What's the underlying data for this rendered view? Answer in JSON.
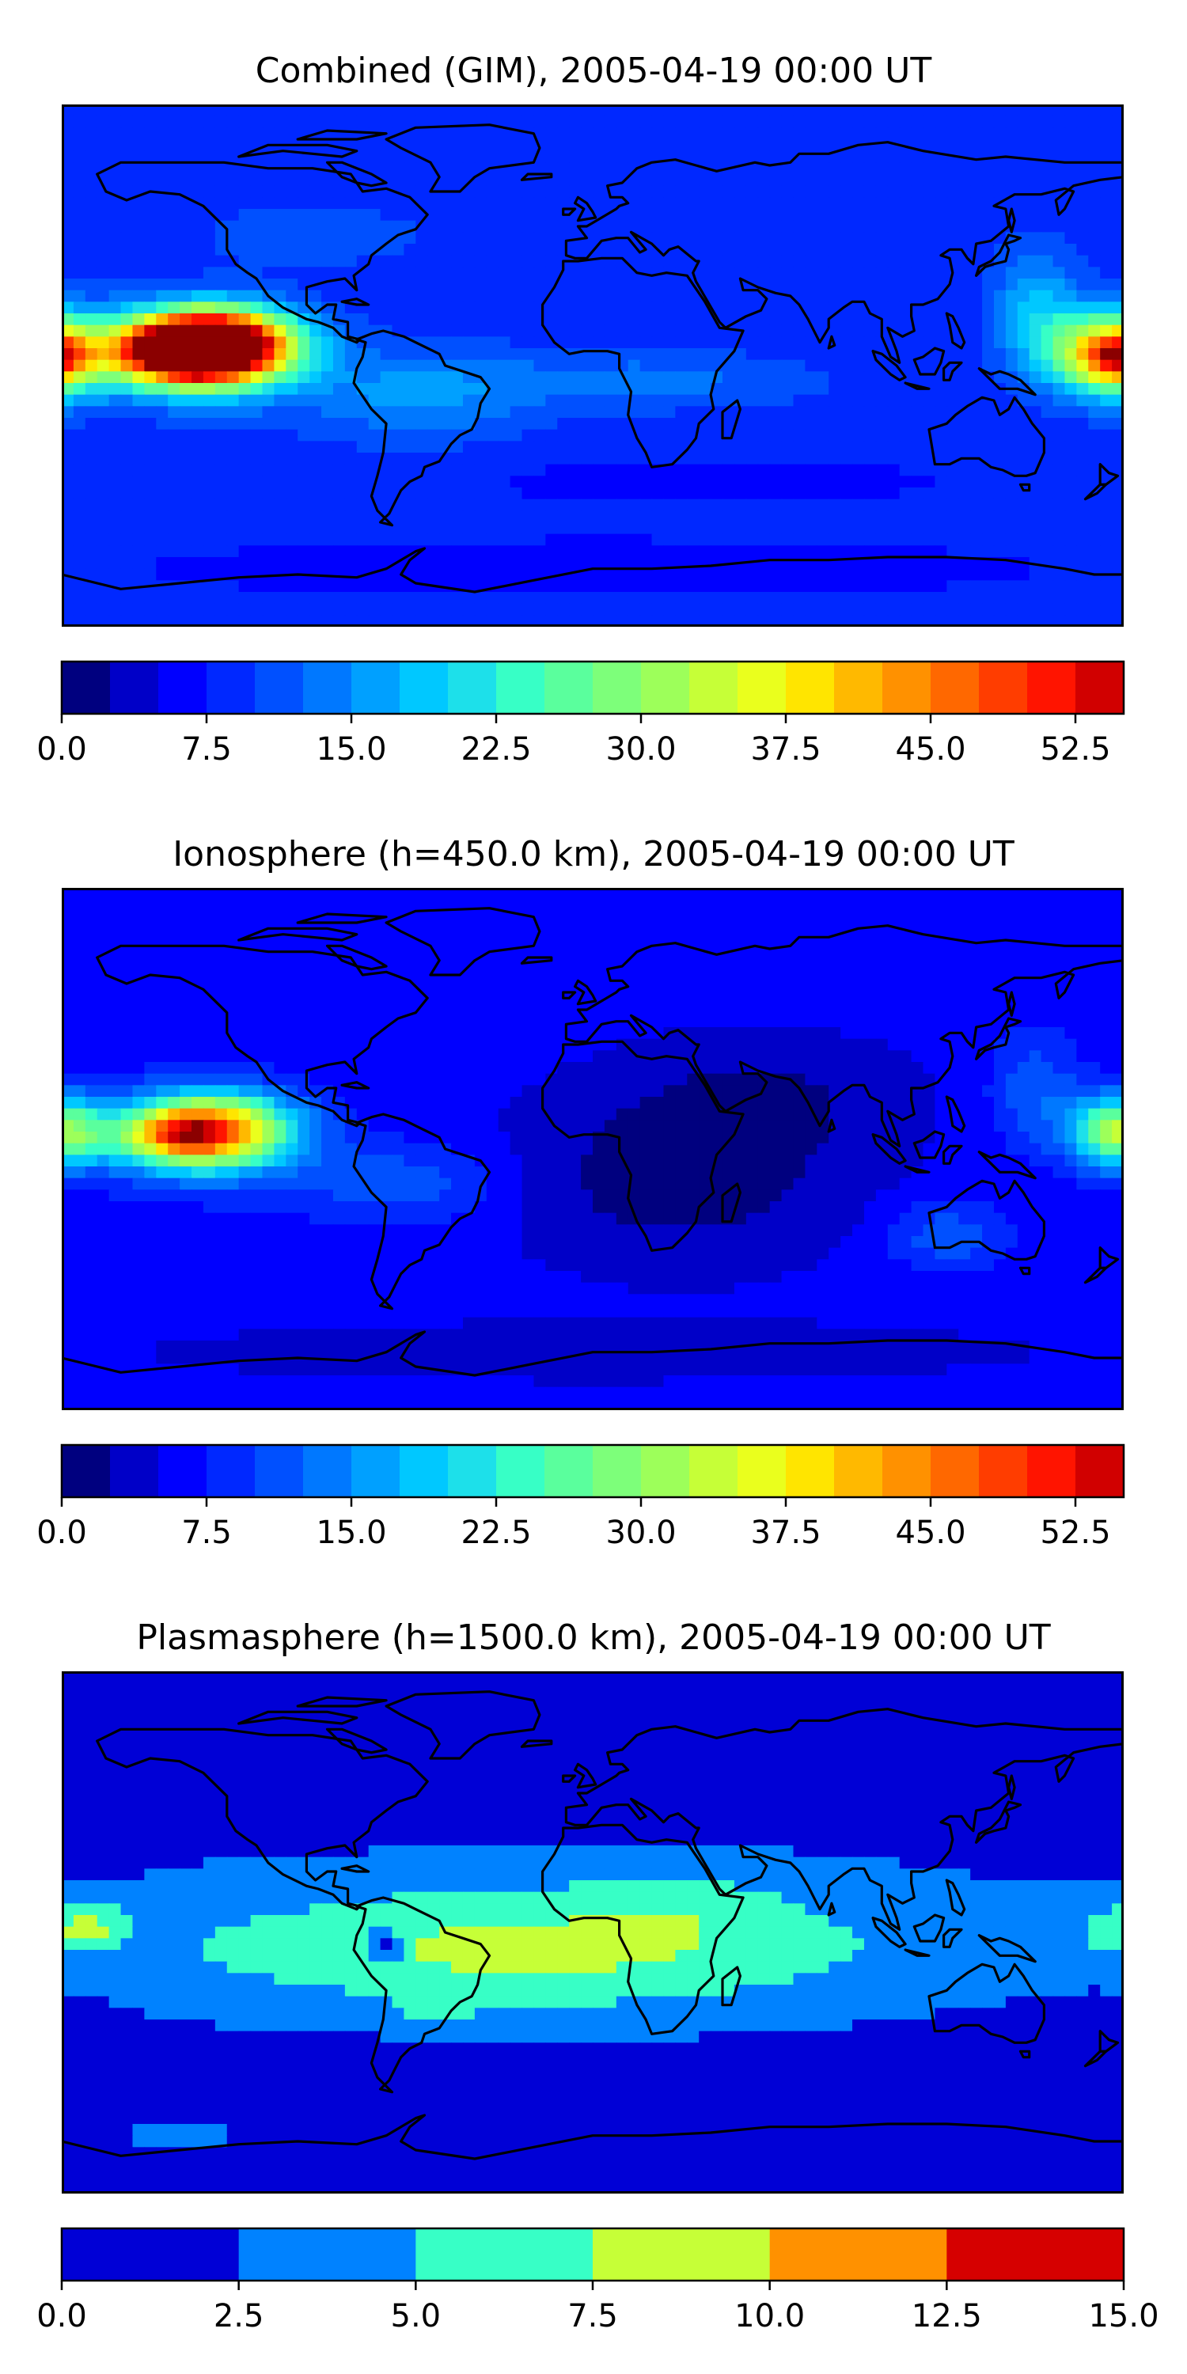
{
  "chart_data": [
    {
      "type": "heatmap",
      "title": "Combined (GIM), 2005-04-19 00:00 UT",
      "projection": "equirectangular world map with coastlines",
      "colormap": "jet",
      "colorbar": {
        "levels": [
          0,
          2.5,
          5,
          7.5,
          10,
          12.5,
          15,
          17.5,
          20,
          22.5,
          25,
          27.5,
          30,
          32.5,
          35,
          37.5,
          40,
          42.5,
          45,
          47.5,
          50,
          52.5,
          55
        ],
        "ticks": [
          "0.0",
          "7.5",
          "15.0",
          "22.5",
          "30.0",
          "37.5",
          "45.0",
          "52.5"
        ],
        "colors": [
          "#00007f",
          "#0000c8",
          "#0000ff",
          "#0028ff",
          "#0050ff",
          "#0078ff",
          "#00a0ff",
          "#00c8ff",
          "#1de0ea",
          "#37ffc6",
          "#5aff9d",
          "#7dff7a",
          "#9dff5a",
          "#c6ff37",
          "#eaff1d",
          "#ffe500",
          "#ffb900",
          "#ff9100",
          "#ff6800",
          "#ff3d00",
          "#ff1400",
          "#d10000",
          "#8b0000"
        ]
      },
      "background_level": 8.5,
      "features": [
        {
          "lon": -132,
          "lat": 5,
          "rx": 32,
          "ry": 15,
          "value": 27
        },
        {
          "lon": -140,
          "lat": 5,
          "rx": 22,
          "ry": 10,
          "value": 34
        },
        {
          "lon": -125,
          "lat": 8,
          "rx": 24,
          "ry": 11,
          "value": 27
        },
        {
          "lon": -130,
          "lat": 6,
          "rx": 20,
          "ry": 9,
          "value": 14
        },
        {
          "lon": -135,
          "lat": 7,
          "rx": 9,
          "ry": 4,
          "value": 4
        },
        {
          "lon": 175,
          "lat": 4,
          "rx": 20,
          "ry": 14,
          "value": 32
        },
        {
          "lon": 178,
          "lat": 3,
          "rx": 10,
          "ry": 8,
          "value": 15
        },
        {
          "lon": -60,
          "lat": -10,
          "rx": 40,
          "ry": 16,
          "value": 7
        },
        {
          "lon": 20,
          "lat": -5,
          "rx": 55,
          "ry": 10,
          "value": 5
        },
        {
          "lon": 150,
          "lat": 20,
          "rx": 15,
          "ry": 20,
          "value": 9
        },
        {
          "lon": -95,
          "lat": 45,
          "rx": 35,
          "ry": 10,
          "value": 4
        },
        {
          "lon": 40,
          "lat": -40,
          "rx": 90,
          "ry": 9,
          "value": -2
        },
        {
          "lon": 0,
          "lat": -70,
          "rx": 180,
          "ry": 12,
          "value": -2
        },
        {
          "lon": 90,
          "lat": 30,
          "rx": 40,
          "ry": 15,
          "value": -1
        },
        {
          "lon": 60,
          "lat": 70,
          "rx": 80,
          "ry": 10,
          "value": -1
        }
      ]
    },
    {
      "type": "heatmap",
      "title": "Ionosphere  (h=450.0 km), 2005-04-19 00:00 UT",
      "projection": "equirectangular world map with coastlines",
      "colormap": "jet",
      "colorbar": {
        "levels": [
          0,
          2.5,
          5,
          7.5,
          10,
          12.5,
          15,
          17.5,
          20,
          22.5,
          25,
          27.5,
          30,
          32.5,
          35,
          37.5,
          40,
          42.5,
          45,
          47.5,
          50,
          52.5,
          55
        ],
        "ticks": [
          "0.0",
          "7.5",
          "15.0",
          "22.5",
          "30.0",
          "37.5",
          "45.0",
          "52.5"
        ],
        "colors": [
          "#00007f",
          "#0000c8",
          "#0000ff",
          "#0028ff",
          "#0050ff",
          "#0078ff",
          "#00a0ff",
          "#00c8ff",
          "#1de0ea",
          "#37ffc6",
          "#5aff9d",
          "#7dff7a",
          "#9dff5a",
          "#c6ff37",
          "#eaff1d",
          "#ffe500",
          "#ffb900",
          "#ff9100",
          "#ff6800",
          "#ff3d00",
          "#ff1400",
          "#d10000",
          "#8b0000"
        ]
      },
      "background_level": 6,
      "features": [
        {
          "lon": -132,
          "lat": 5,
          "rx": 32,
          "ry": 15,
          "value": 22
        },
        {
          "lon": -140,
          "lat": 5,
          "rx": 20,
          "ry": 9,
          "value": 20
        },
        {
          "lon": -125,
          "lat": 8,
          "rx": 24,
          "ry": 11,
          "value": 14
        },
        {
          "lon": 178,
          "lat": 6,
          "rx": 16,
          "ry": 12,
          "value": 25
        },
        {
          "lon": -65,
          "lat": -12,
          "rx": 35,
          "ry": 14,
          "value": 6
        },
        {
          "lon": 30,
          "lat": -10,
          "rx": 60,
          "ry": 30,
          "value": -5
        },
        {
          "lon": 60,
          "lat": 20,
          "rx": 50,
          "ry": 20,
          "value": -3
        },
        {
          "lon": 0,
          "lat": -70,
          "rx": 180,
          "ry": 12,
          "value": -2
        },
        {
          "lon": 150,
          "lat": 20,
          "rx": 15,
          "ry": 20,
          "value": 6
        },
        {
          "lon": 120,
          "lat": -30,
          "rx": 20,
          "ry": 12,
          "value": 6
        }
      ]
    },
    {
      "type": "heatmap",
      "title": "Plasmasphere (h=1500.0 km), 2005-04-19 00:00 UT",
      "projection": "equirectangular world map with coastlines",
      "colormap": "jet",
      "colorbar": {
        "levels": [
          0,
          2.5,
          5,
          7.5,
          10,
          12.5,
          15
        ],
        "ticks": [
          "0.0",
          "2.5",
          "5.0",
          "7.5",
          "10.0",
          "12.5",
          "15.0"
        ],
        "colors": [
          "#0000d6",
          "#0082ff",
          "#37ffc6",
          "#c6ff37",
          "#ff9100",
          "#d60000"
        ]
      },
      "background_level": 1.2,
      "features": [
        {
          "lon": 0,
          "lat": 0,
          "rx": 170,
          "ry": 32,
          "value": 2.2
        },
        {
          "lon": -10,
          "lat": -5,
          "rx": 160,
          "ry": 25,
          "value": 2.6
        },
        {
          "lon": -30,
          "lat": -8,
          "rx": 90,
          "ry": 20,
          "value": 2.5
        },
        {
          "lon": 30,
          "lat": 10,
          "rx": 30,
          "ry": 12,
          "value": 1.5
        },
        {
          "lon": 175,
          "lat": 0,
          "rx": 20,
          "ry": 12,
          "value": 2.5
        },
        {
          "lon": -170,
          "lat": 2,
          "rx": 12,
          "ry": 8,
          "value": 4
        },
        {
          "lon": -52,
          "lat": -28,
          "rx": 12,
          "ry": 6,
          "value": 2.5
        },
        {
          "lon": -70,
          "lat": -5,
          "rx": 6,
          "ry": 6,
          "value": -6
        },
        {
          "lon": -135,
          "lat": -5,
          "rx": 25,
          "ry": 30,
          "value": 0.5
        },
        {
          "lon": -140,
          "lat": -70,
          "rx": 25,
          "ry": 6,
          "value": 2
        }
      ]
    }
  ]
}
